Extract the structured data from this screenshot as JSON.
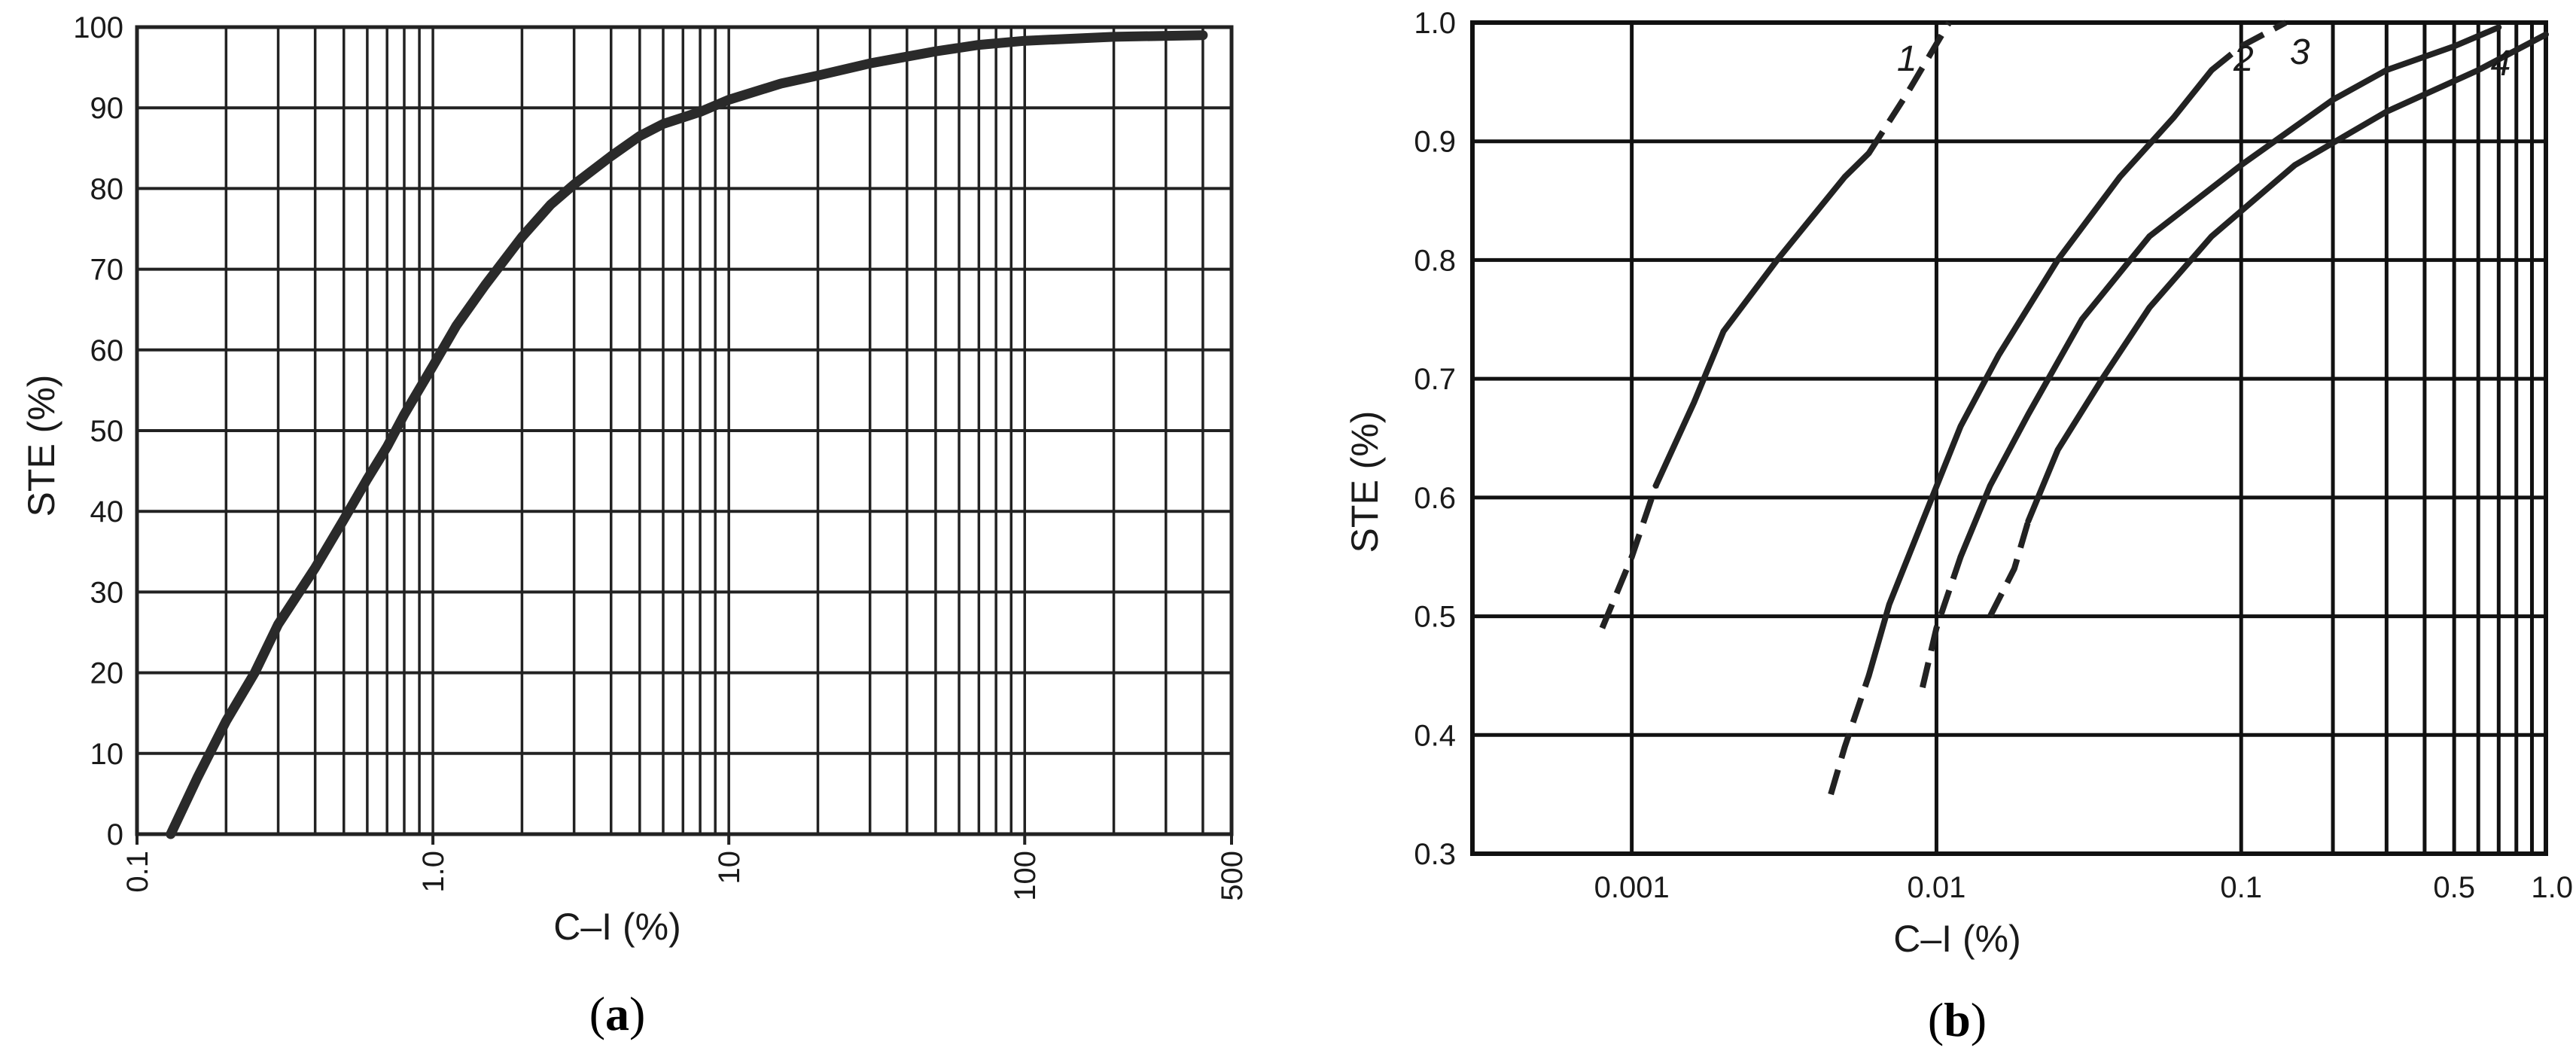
{
  "chart_data": [
    {
      "type": "line",
      "panel_label": "a",
      "xlabel": "C–I (%)",
      "ylabel": "STE (%)",
      "x_scale": "log",
      "xlim": [
        0.1,
        500
      ],
      "ylim": [
        0,
        100
      ],
      "x_ticks": [
        {
          "value": 0.1,
          "label": "0.1"
        },
        {
          "value": 1,
          "label": "1.0"
        },
        {
          "value": 10,
          "label": "10"
        },
        {
          "value": 100,
          "label": "100"
        },
        {
          "value": 500,
          "label": "500"
        }
      ],
      "y_ticks": [
        {
          "value": 0,
          "label": "0"
        },
        {
          "value": 10,
          "label": "10"
        },
        {
          "value": 20,
          "label": "20"
        },
        {
          "value": 30,
          "label": "30"
        },
        {
          "value": 40,
          "label": "40"
        },
        {
          "value": 50,
          "label": "50"
        },
        {
          "value": 60,
          "label": "60"
        },
        {
          "value": 70,
          "label": "70"
        },
        {
          "value": 80,
          "label": "80"
        },
        {
          "value": 90,
          "label": "90"
        },
        {
          "value": 100,
          "label": "100"
        }
      ],
      "grid": true,
      "series": [
        {
          "style": "solid",
          "points": [
            [
              0.13,
              0
            ],
            [
              0.16,
              7
            ],
            [
              0.2,
              14
            ],
            [
              0.25,
              20
            ],
            [
              0.3,
              26
            ],
            [
              0.4,
              33
            ],
            [
              0.5,
              39
            ],
            [
              0.6,
              44
            ],
            [
              0.7,
              48
            ],
            [
              0.8,
              52
            ],
            [
              1.0,
              58
            ],
            [
              1.2,
              63
            ],
            [
              1.5,
              68
            ],
            [
              2.0,
              74
            ],
            [
              2.5,
              78
            ],
            [
              3.0,
              80.5
            ],
            [
              4.0,
              84
            ],
            [
              5.0,
              86.5
            ],
            [
              6.0,
              88
            ],
            [
              8.0,
              89.5
            ],
            [
              10,
              91
            ],
            [
              15,
              93
            ],
            [
              20,
              94
            ],
            [
              30,
              95.5
            ],
            [
              50,
              97
            ],
            [
              70,
              97.8
            ],
            [
              100,
              98.3
            ],
            [
              200,
              98.8
            ],
            [
              400,
              99
            ]
          ]
        }
      ]
    },
    {
      "type": "line",
      "panel_label": "b",
      "xlabel": "C–I (%)",
      "ylabel": "STE (%)",
      "x_scale": "log",
      "xlim": [
        0.0003,
        1.0
      ],
      "ylim": [
        0.3,
        1.0
      ],
      "x_ticks": [
        {
          "value": 0.001,
          "label": "0.001"
        },
        {
          "value": 0.01,
          "label": "0.01"
        },
        {
          "value": 0.1,
          "label": "0.1"
        },
        {
          "value": 0.5,
          "label": "0.5"
        },
        {
          "value": 1.0,
          "label": "1.0"
        }
      ],
      "y_ticks": [
        {
          "value": 0.3,
          "label": "0.3"
        },
        {
          "value": 0.4,
          "label": "0.4"
        },
        {
          "value": 0.5,
          "label": "0.5"
        },
        {
          "value": 0.6,
          "label": "0.6"
        },
        {
          "value": 0.7,
          "label": "0.7"
        },
        {
          "value": 0.8,
          "label": "0.8"
        },
        {
          "value": 0.9,
          "label": "0.9"
        },
        {
          "value": 1.0,
          "label": "1.0"
        }
      ],
      "grid": true,
      "series": [
        {
          "label": "1",
          "solid": [
            [
              0.0012,
              0.61
            ],
            [
              0.0016,
              0.68
            ],
            [
              0.002,
              0.74
            ],
            [
              0.003,
              0.8
            ],
            [
              0.005,
              0.87
            ],
            [
              0.006,
              0.89
            ]
          ],
          "dashed_start": [
            [
              0.0008,
              0.49
            ],
            [
              0.001,
              0.55
            ],
            [
              0.0012,
              0.61
            ]
          ],
          "dashed_end": [
            [
              0.006,
              0.89
            ],
            [
              0.008,
              0.94
            ],
            [
              0.011,
              1.0
            ]
          ]
        },
        {
          "label": "2",
          "solid": [
            [
              0.006,
              0.45
            ],
            [
              0.007,
              0.51
            ],
            [
              0.009,
              0.58
            ],
            [
              0.012,
              0.66
            ],
            [
              0.016,
              0.72
            ],
            [
              0.025,
              0.8
            ],
            [
              0.04,
              0.87
            ],
            [
              0.06,
              0.92
            ],
            [
              0.08,
              0.96
            ]
          ],
          "dashed_start": [
            [
              0.0045,
              0.35
            ],
            [
              0.005,
              0.39
            ],
            [
              0.006,
              0.45
            ]
          ],
          "dashed_end": [
            [
              0.08,
              0.96
            ],
            [
              0.1,
              0.98
            ],
            [
              0.14,
              1.0
            ]
          ]
        },
        {
          "label": "3",
          "solid": [
            [
              0.012,
              0.55
            ],
            [
              0.015,
              0.61
            ],
            [
              0.02,
              0.67
            ],
            [
              0.03,
              0.75
            ],
            [
              0.05,
              0.82
            ],
            [
              0.1,
              0.88
            ],
            [
              0.2,
              0.935
            ],
            [
              0.3,
              0.96
            ],
            [
              0.5,
              0.98
            ],
            [
              0.7,
              0.996
            ]
          ],
          "dashed_start": [
            [
              0.009,
              0.44
            ],
            [
              0.01,
              0.49
            ],
            [
              0.012,
              0.55
            ]
          ]
        },
        {
          "label": "4",
          "solid": [
            [
              0.02,
              0.58
            ],
            [
              0.025,
              0.64
            ],
            [
              0.035,
              0.7
            ],
            [
              0.05,
              0.76
            ],
            [
              0.08,
              0.82
            ],
            [
              0.15,
              0.88
            ],
            [
              0.3,
              0.925
            ],
            [
              0.6,
              0.96
            ],
            [
              1.0,
              0.99
            ]
          ],
          "dashed_start": [
            [
              0.015,
              0.5
            ],
            [
              0.018,
              0.54
            ],
            [
              0.02,
              0.58
            ]
          ]
        }
      ]
    }
  ]
}
